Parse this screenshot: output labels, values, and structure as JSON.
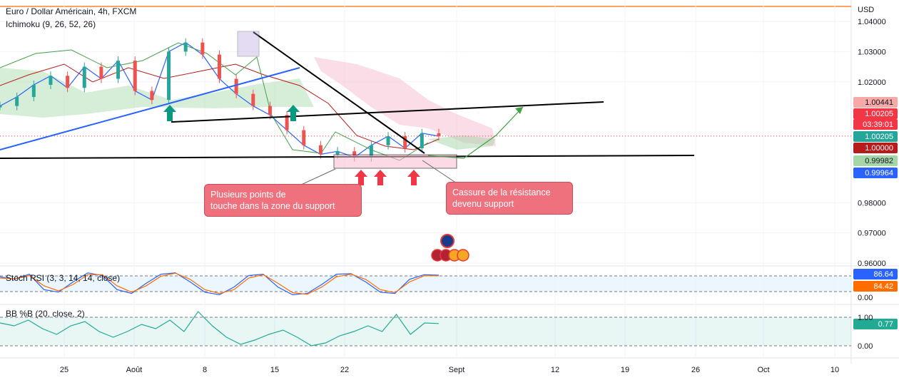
{
  "header": {
    "symbol_line": "Euro / Dollar Américain, 4h, FXCM",
    "indicator": "Ichimoku (9, 26, 52, 26)",
    "currency": "USD"
  },
  "colors": {
    "up": "#26a69a",
    "down": "#ef5350",
    "trendline": "#000000",
    "support_up": "#2962ff",
    "cloud_bull": "#a5d6a7",
    "cloud_bear": "#f8bbd0",
    "arrow_green": "#089981",
    "arrow_red": "#f23645",
    "annotation": "#f0717e",
    "stoch_k": "#2962ff",
    "stoch_d": "#ff6d00",
    "bb": "#22ab94"
  },
  "chart_data": {
    "type": "line",
    "title": "Euro / Dollar Américain, 4h, FXCM",
    "x_ticks": [
      "25",
      "Août",
      "8",
      "15",
      "22",
      "Sept",
      "12",
      "19",
      "26",
      "Oct",
      "10"
    ],
    "y_ticks": [
      "1.04000",
      "1.03000",
      "1.02000",
      "0.98000",
      "0.97000",
      "0.96000"
    ],
    "ylim": [
      0.96,
      1.04
    ],
    "grid": true,
    "series": [
      {
        "name": "Ichimoku",
        "values": [
          1.012,
          1.015,
          1.019,
          1.022,
          1.018,
          1.025,
          1.021,
          1.027,
          1.017,
          1.014,
          1.03,
          1.033,
          1.029,
          1.021,
          1.016,
          1.012,
          1.009,
          1.004,
          0.999,
          0.996,
          0.997,
          0.995,
          0.999,
          1.002,
          0.998,
          1.003,
          1.002
        ]
      }
    ],
    "horizontal_levels": [
      1.0067,
      0.999
    ],
    "price_labels": [
      {
        "value": "1.00441",
        "color": "#f7a9a8",
        "text_color": "#131722"
      },
      {
        "value": "1.00205",
        "color": "#f23645",
        "text_color": "#ffffff"
      },
      {
        "value": "03:39:01",
        "color": "#f23645",
        "text_color": "#ffffff"
      },
      {
        "value": "1.00205",
        "color": "#26a69a",
        "text_color": "#ffffff"
      },
      {
        "value": "1.00000",
        "color": "#b71c1c",
        "text_color": "#ffffff"
      },
      {
        "value": "0.99982",
        "color": "#a5d6a7",
        "text_color": "#131722"
      },
      {
        "value": "0.99964",
        "color": "#2962ff",
        "text_color": "#ffffff"
      }
    ],
    "annotations": [
      "Plusieurs points de\ntouche dans la zone du support",
      "Cassure de la résistance\ndevenu support"
    ]
  },
  "stoch_rsi": {
    "label": "Stoch RSI (3, 3, 14, 14, close)",
    "k_value": "86.64",
    "d_value": "84.42",
    "zero_tick": "0.00",
    "k": [
      80,
      70,
      90,
      30,
      20,
      60,
      95,
      85,
      30,
      15,
      55,
      90,
      95,
      60,
      20,
      10,
      40,
      85,
      90,
      40,
      10,
      15,
      50,
      90,
      92,
      60,
      20,
      15,
      70,
      88,
      86
    ],
    "d": [
      75,
      72,
      85,
      45,
      25,
      50,
      88,
      88,
      45,
      20,
      45,
      82,
      94,
      70,
      30,
      15,
      30,
      75,
      88,
      55,
      18,
      12,
      40,
      80,
      90,
      70,
      30,
      18,
      60,
      84,
      84
    ]
  },
  "bb_pctb": {
    "label": "BB %B (20, close, 2)",
    "value": "0.77",
    "ticks": [
      "1.00",
      "0.00"
    ],
    "values": [
      0.8,
      0.7,
      0.9,
      0.6,
      0.4,
      0.7,
      0.85,
      0.5,
      0.3,
      0.5,
      0.75,
      0.6,
      0.9,
      0.5,
      1.2,
      0.7,
      0.3,
      0.05,
      0.2,
      0.4,
      0.55,
      0.3,
      0.0,
      0.1,
      0.35,
      0.5,
      0.7,
      0.5,
      1.1,
      0.4,
      0.8,
      0.78
    ]
  }
}
